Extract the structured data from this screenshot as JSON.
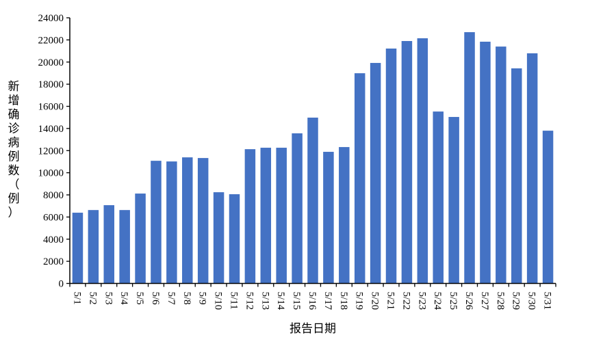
{
  "chart_data": {
    "type": "bar",
    "title": "",
    "xlabel": "报告日期",
    "ylabel_chars": [
      "新",
      "增",
      "确",
      "诊",
      "病",
      "例",
      "数",
      "（",
      "例",
      "）"
    ],
    "ylabel": "新增确诊病例数（例）",
    "ylim": [
      0,
      24000
    ],
    "yticks": [
      0,
      2000,
      4000,
      6000,
      8000,
      10000,
      12000,
      14000,
      16000,
      18000,
      20000,
      22000,
      24000
    ],
    "grid": false,
    "bar_color": "#4472C4",
    "categories": [
      "5/1",
      "5/2",
      "5/3",
      "5/4",
      "5/5",
      "5/6",
      "5/7",
      "5/8",
      "5/9",
      "5/10",
      "5/11",
      "5/12",
      "5/13",
      "5/14",
      "5/15",
      "5/16",
      "5/17",
      "5/18",
      "5/19",
      "5/20",
      "5/21",
      "5/22",
      "5/23",
      "5/24",
      "5/25",
      "5/26",
      "5/27",
      "5/28",
      "5/29",
      "5/30",
      "5/31"
    ],
    "values": [
      6390,
      6630,
      7070,
      6630,
      8120,
      11080,
      11020,
      11390,
      11330,
      8240,
      8060,
      12130,
      12260,
      12260,
      13560,
      14980,
      11890,
      12320,
      18990,
      19920,
      21220,
      21900,
      22150,
      15530,
      15040,
      22700,
      21840,
      21400,
      19430,
      20790,
      13800
    ]
  }
}
